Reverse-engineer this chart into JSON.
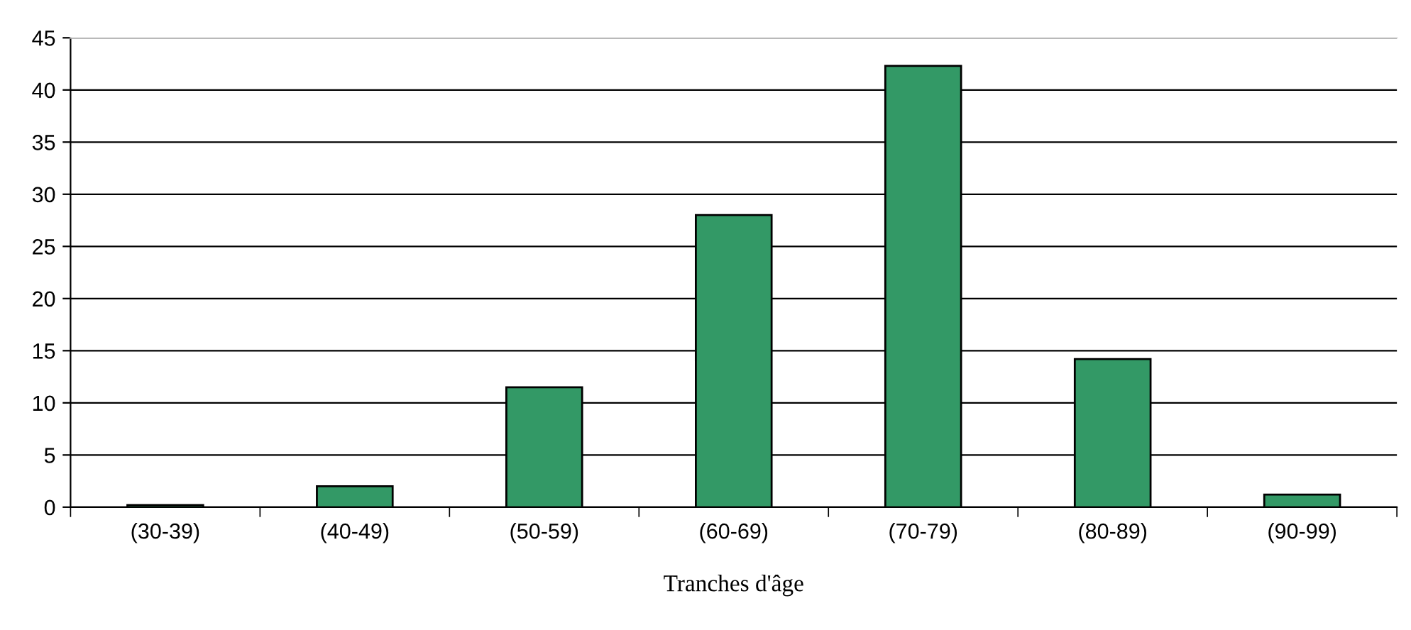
{
  "chart_data": {
    "type": "bar",
    "xlabel": "Tranches d'âge",
    "categories": [
      "(30-39)",
      "(40-49)",
      "(50-59)",
      "(60-69)",
      "(70-79)",
      "(80-89)",
      "(90-99)"
    ],
    "values": [
      0.2,
      2.0,
      11.5,
      28.0,
      42.3,
      14.2,
      1.2
    ],
    "color": "#339966",
    "ylim": [
      0,
      45
    ],
    "yticks": [
      0,
      5,
      10,
      15,
      20,
      25,
      30,
      35,
      40,
      45
    ],
    "grid": "y",
    "legend": false
  }
}
